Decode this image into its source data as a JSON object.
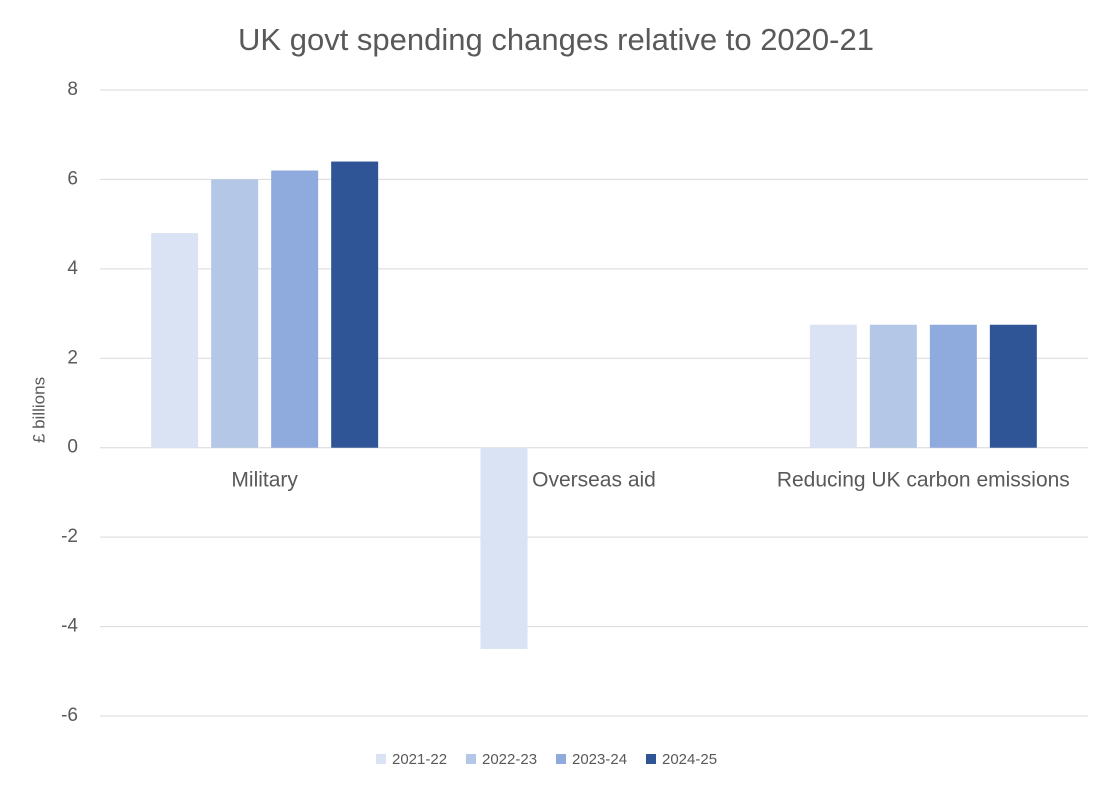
{
  "chart_data": {
    "type": "bar",
    "title": "UK govt spending changes relative to 2020-21",
    "y_label": "£ billions",
    "categories": [
      "Military",
      "Overseas aid",
      "Reducing UK carbon emissions"
    ],
    "series": [
      {
        "name": "2021-22",
        "color": "#dae3f3",
        "values": [
          4.8,
          -4.5,
          2.75
        ]
      },
      {
        "name": "2022-23",
        "color": "#b4c7e7",
        "values": [
          6.0,
          0,
          2.75
        ]
      },
      {
        "name": "2023-24",
        "color": "#8faadc",
        "values": [
          6.2,
          0,
          2.75
        ]
      },
      {
        "name": "2024-25",
        "color": "#2f5597",
        "values": [
          6.4,
          0,
          2.75
        ]
      }
    ],
    "ylim": [
      -6,
      8
    ],
    "yticks": [
      -6,
      -4,
      -2,
      0,
      2,
      4,
      6,
      8
    ],
    "grid": true,
    "legend": "bottom"
  }
}
